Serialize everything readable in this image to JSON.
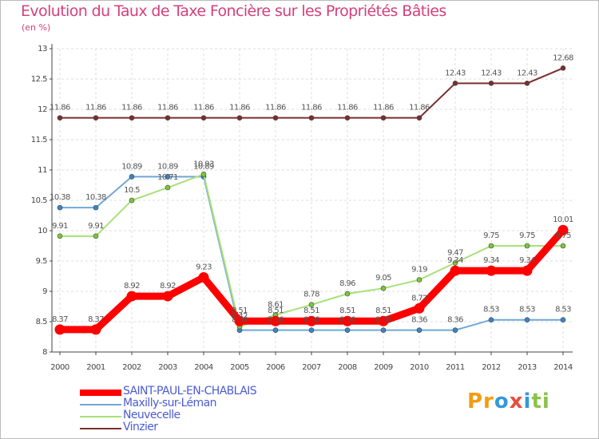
{
  "title": "Evolution du Taux de Taxe Foncière sur les Propriétés Bâties",
  "subtitle": "(en %)",
  "logo": {
    "parts": [
      "Pr",
      "o",
      "x",
      "i",
      "ti"
    ],
    "colors": [
      "#f39c12",
      "#3498db",
      "#e74c3c",
      "#3498db",
      "#8bc34a"
    ]
  },
  "chart_data": {
    "type": "line",
    "title": "Evolution du Taux de Taxe Foncière sur les Propriétés Bâties",
    "ylabel": "(en %)",
    "xlabel": "",
    "x": [
      "2000",
      "2001",
      "2002",
      "2003",
      "2004",
      "2005",
      "2006",
      "2007",
      "2008",
      "2009",
      "2010",
      "2011",
      "2012",
      "2013",
      "2014"
    ],
    "ylim": [
      8,
      13
    ],
    "yticks": [
      "8",
      "8.5",
      "9",
      "9.5",
      "10",
      "10.5",
      "11",
      "11.5",
      "12",
      "12.5",
      "13"
    ],
    "grid": true,
    "series": [
      {
        "name": "SAINT-PAUL-EN-CHABLAIS",
        "color": "#ff0000",
        "marker": "#ff0000",
        "bold": true,
        "values": [
          8.37,
          8.37,
          8.92,
          8.92,
          9.23,
          8.51,
          8.51,
          8.51,
          8.51,
          8.51,
          8.72,
          9.34,
          9.34,
          9.34,
          10.01
        ],
        "labels": [
          "8.37",
          "8.37",
          "8.92",
          "8.92",
          "9.23",
          "8.51",
          "8.51",
          "8.51",
          "8.51",
          "8.51",
          "8.72",
          "9.34",
          "9.34",
          "9.34",
          "10.01"
        ]
      },
      {
        "name": "Maxilly-sur-Léman",
        "color": "#6fa8d6",
        "marker": "#3a85c5",
        "bold": false,
        "values": [
          10.38,
          10.38,
          10.89,
          10.89,
          10.89,
          8.36,
          8.36,
          8.36,
          8.36,
          8.36,
          8.36,
          8.36,
          8.53,
          8.53,
          8.53
        ],
        "labels": [
          "10.38",
          "10.38",
          "10.89",
          "10.89",
          "10.89",
          "8.36",
          "8.36",
          "8.36",
          "8.36",
          "8.36",
          "8.36",
          "8.36",
          "8.53",
          "8.53",
          "8.53"
        ]
      },
      {
        "name": "Neuvecelle",
        "color": "#a8e07a",
        "marker": "#7cc63c",
        "bold": false,
        "values": [
          9.91,
          9.91,
          10.5,
          10.71,
          10.93,
          8.42,
          8.61,
          8.78,
          8.96,
          9.05,
          9.19,
          9.47,
          9.75,
          9.75,
          9.75
        ],
        "labels": [
          "9.91",
          "9.91",
          "10.5",
          "10.71",
          "10.93",
          "8.42",
          "8.61",
          "8.78",
          "8.96",
          "9.05",
          "9.19",
          "9.47",
          "9.75",
          "9.75",
          "9.75"
        ]
      },
      {
        "name": "Vinzier",
        "color": "#7a2e2e",
        "marker": "#7a2e2e",
        "bold": false,
        "values": [
          11.86,
          11.86,
          11.86,
          11.86,
          11.86,
          11.86,
          11.86,
          11.86,
          11.86,
          11.86,
          11.86,
          12.43,
          12.43,
          12.43,
          12.68
        ],
        "labels": [
          "11.86",
          "11.86",
          "11.86",
          "11.86",
          "11.86",
          "11.86",
          "11.86",
          "11.86",
          "11.86",
          "11.86",
          "11.86",
          "12.43",
          "12.43",
          "12.43",
          "12.68"
        ]
      }
    ]
  }
}
